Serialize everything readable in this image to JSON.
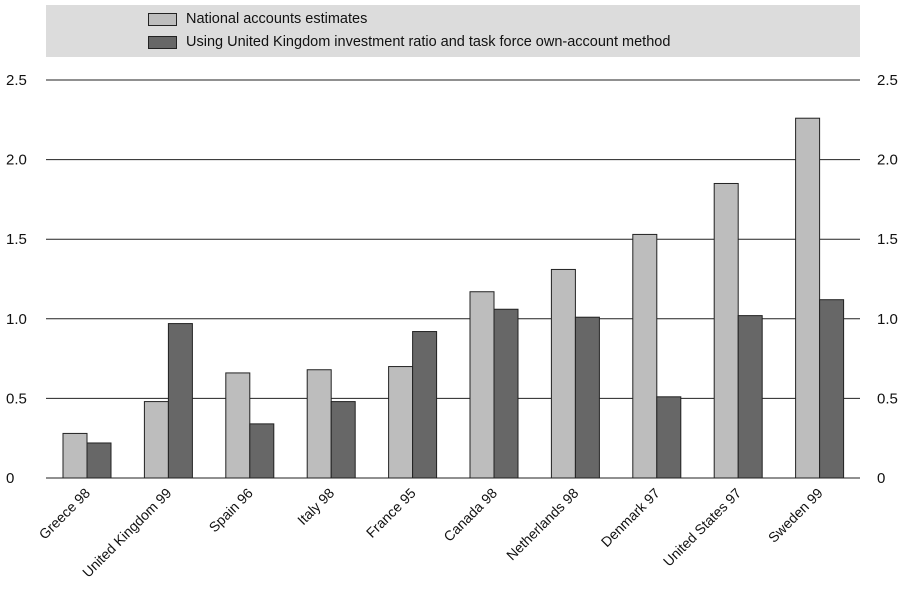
{
  "chart_data": {
    "type": "bar",
    "categories": [
      "Greece 98",
      "United Kingdom 99",
      "Spain 96",
      "Italy 98",
      "France 95",
      "Canada 98",
      "Netherlands 98",
      "Denmark 97",
      "United States 97",
      "Sweden 99"
    ],
    "series": [
      {
        "name": "National accounts estimates",
        "color": "#bdbdbd",
        "values": [
          0.28,
          0.48,
          0.66,
          0.68,
          0.7,
          1.17,
          1.31,
          1.53,
          1.85,
          2.26
        ]
      },
      {
        "name": "Using United Kingdom investment ratio and task force own-account method",
        "color": "#676767",
        "values": [
          0.22,
          0.97,
          0.34,
          0.48,
          0.92,
          1.06,
          1.01,
          0.51,
          1.02,
          1.12
        ]
      }
    ],
    "yticks": [
      "0",
      "0.5",
      "1.0",
      "1.5",
      "2.0",
      "2.5"
    ],
    "ylim": [
      0,
      2.5
    ],
    "title": "",
    "xlabel": "",
    "ylabel": "",
    "grid": true,
    "legend_position": "top",
    "y_axis_both_sides": true
  }
}
